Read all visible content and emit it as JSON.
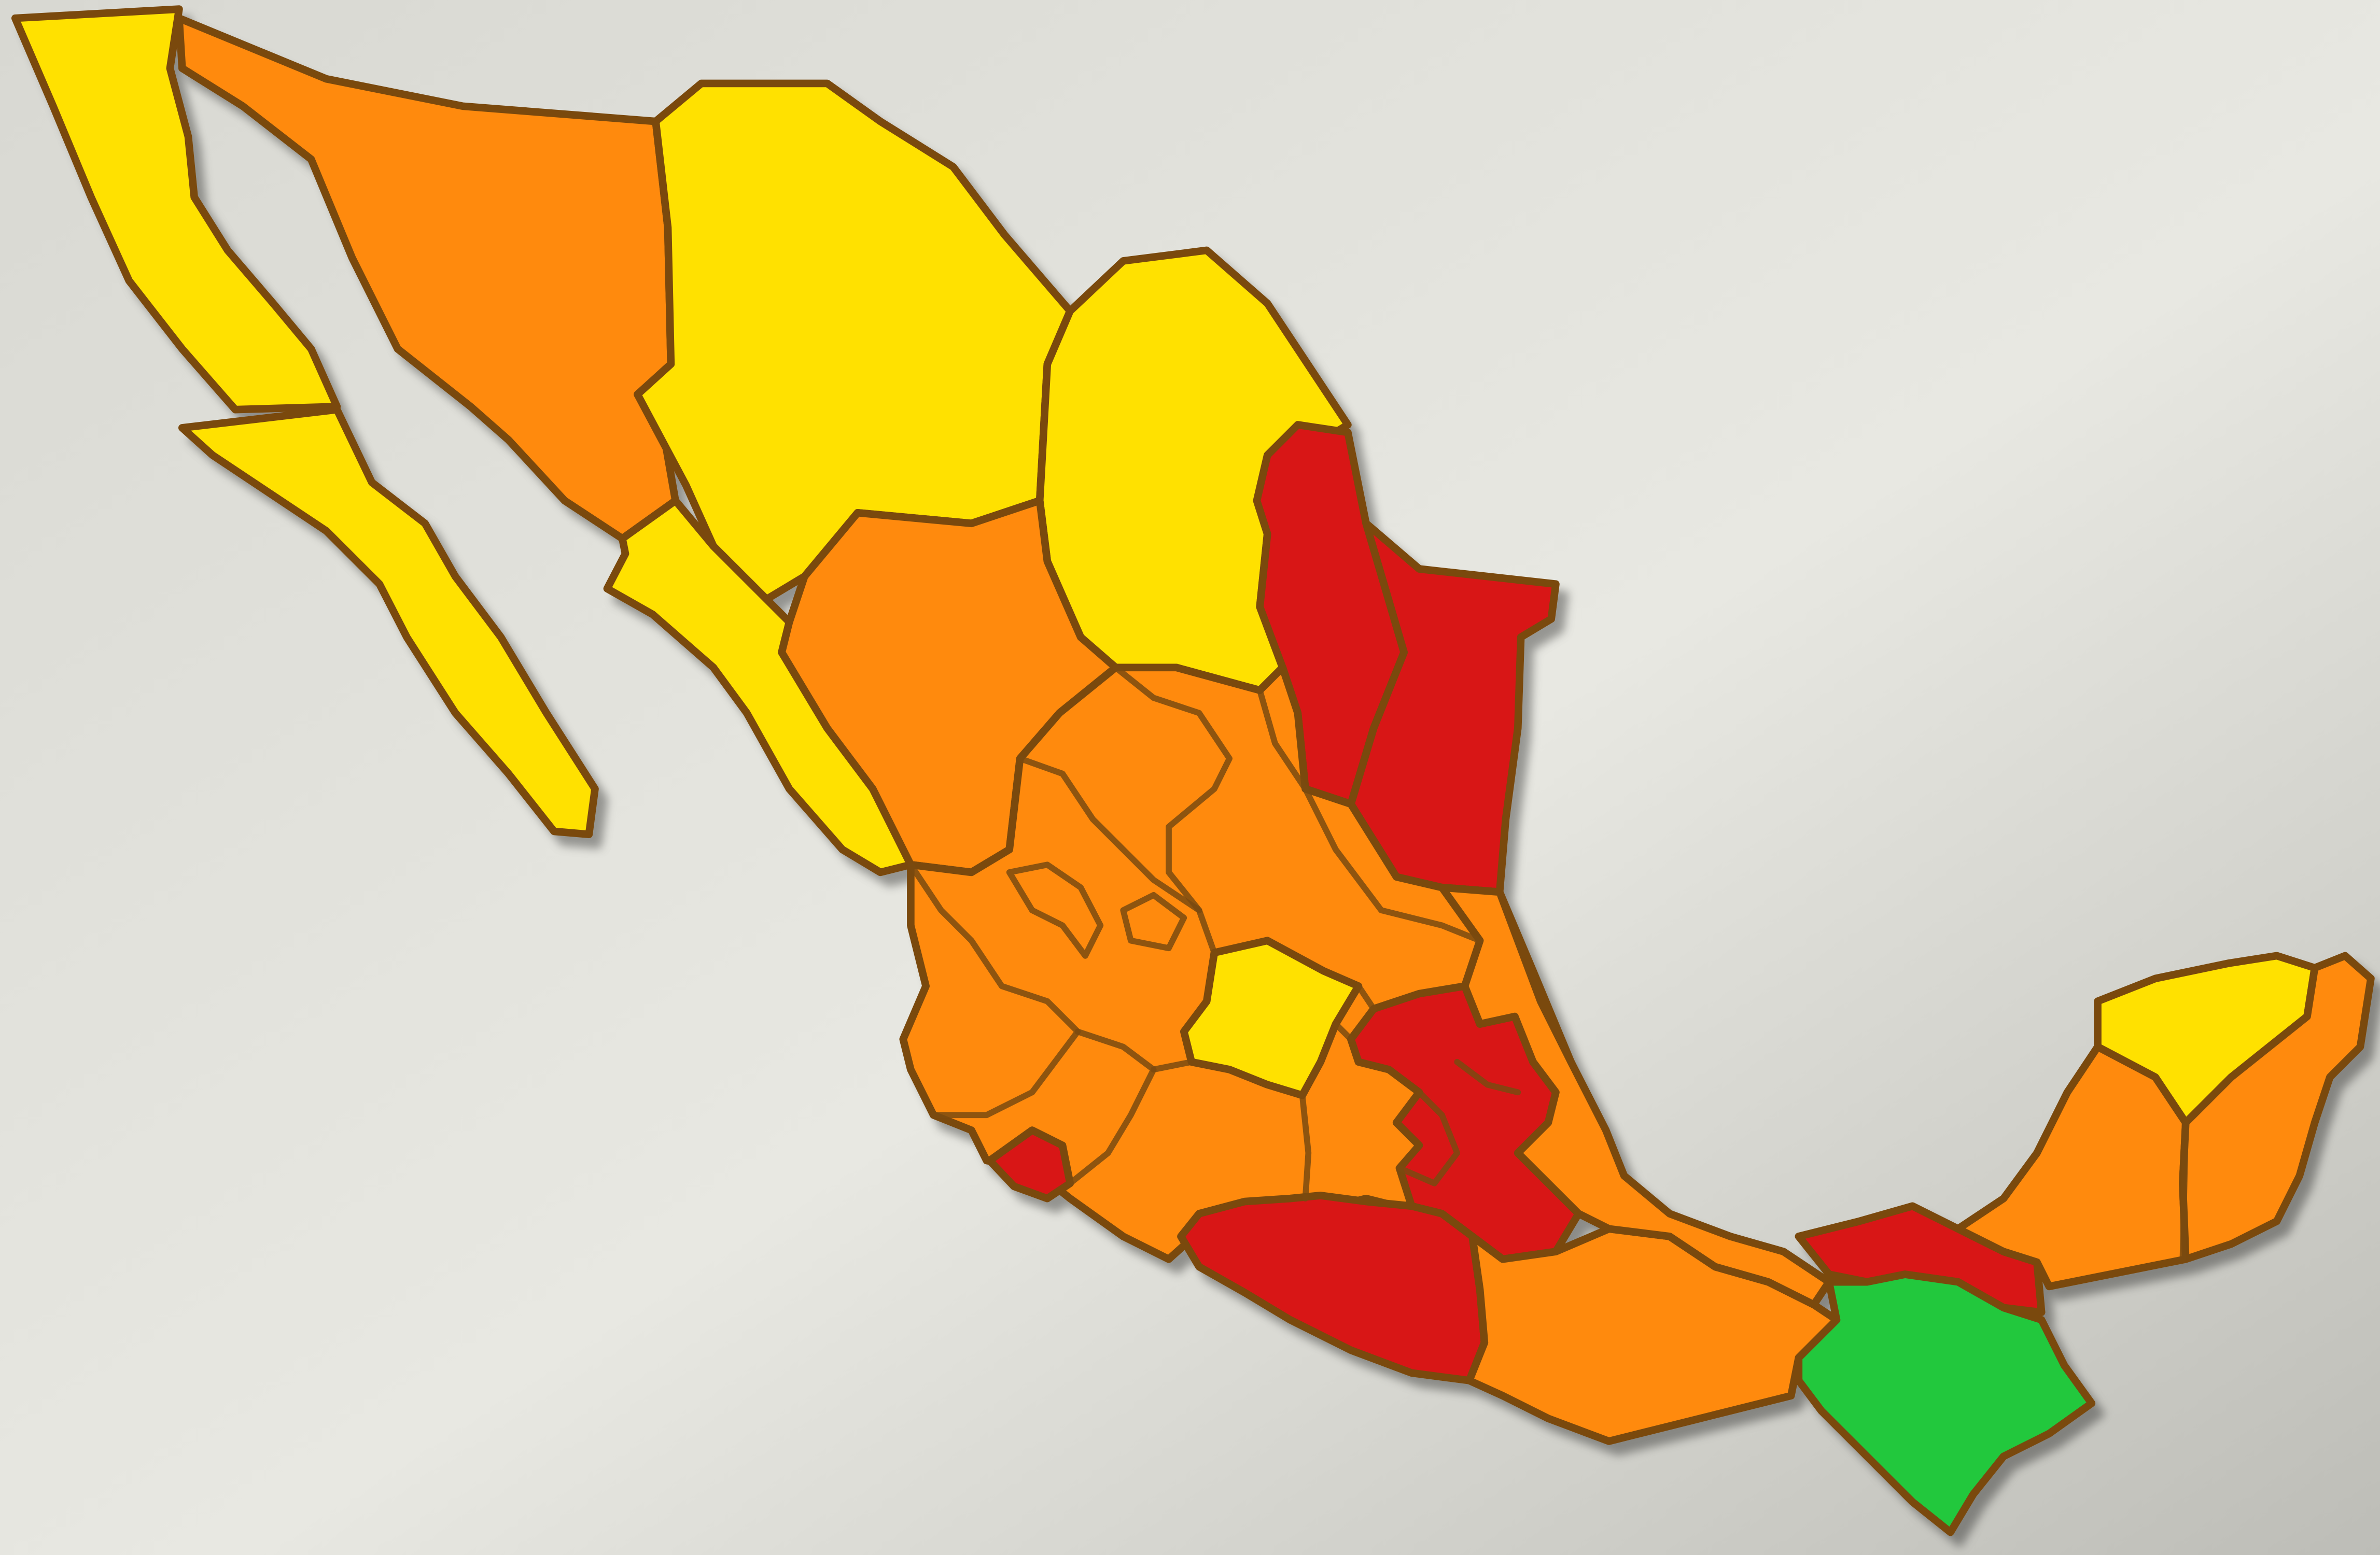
{
  "map": {
    "country": "Mexico",
    "legend": [],
    "colors": {
      "background_light": "#e6e6e0",
      "background_dark": "#c4c4be",
      "yellow": "#ffe100",
      "orange": "#ff8a0a",
      "red": "#d81414",
      "green": "#22c83c",
      "border": "#7a4a10"
    },
    "regions": [
      {
        "name": "baja-california",
        "color_class": "yellow"
      },
      {
        "name": "baja-california-sur",
        "color_class": "yellow"
      },
      {
        "name": "sonora",
        "color_class": "orange"
      },
      {
        "name": "chihuahua",
        "color_class": "yellow"
      },
      {
        "name": "coahuila",
        "color_class": "yellow"
      },
      {
        "name": "sinaloa",
        "color_class": "yellow"
      },
      {
        "name": "durango",
        "color_class": "orange"
      },
      {
        "name": "nuevo-leon",
        "color_class": "red"
      },
      {
        "name": "tamaulipas",
        "color_class": "red"
      },
      {
        "name": "central-states",
        "color_class": "orange"
      },
      {
        "name": "guanajuato",
        "color_class": "yellow"
      },
      {
        "name": "colima",
        "color_class": "red"
      },
      {
        "name": "central-red-states",
        "color_class": "red"
      },
      {
        "name": "guerrero",
        "color_class": "red"
      },
      {
        "name": "oaxaca",
        "color_class": "orange"
      },
      {
        "name": "veracruz",
        "color_class": "orange"
      },
      {
        "name": "tabasco",
        "color_class": "red"
      },
      {
        "name": "chiapas",
        "color_class": "green"
      },
      {
        "name": "campeche",
        "color_class": "orange"
      },
      {
        "name": "yucatan",
        "color_class": "yellow"
      },
      {
        "name": "quintana-roo",
        "color_class": "orange"
      }
    ]
  }
}
